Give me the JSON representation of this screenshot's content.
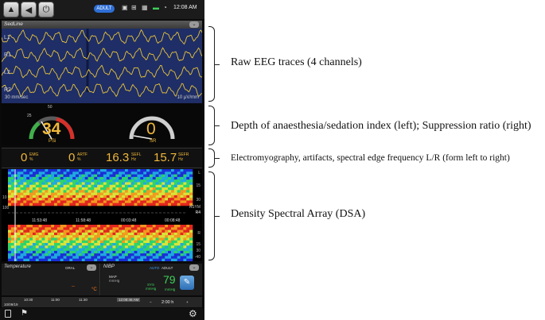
{
  "status_bar": {
    "mode_badge": "ADULT",
    "clock": "12:08 AM",
    "tray_icons": [
      "monitor-icon",
      "network-icon",
      "grid-icon",
      "battery-icon",
      "wifi-icon"
    ]
  },
  "eeg_panel": {
    "title": "SedLine",
    "channels": [
      "L1",
      "R1",
      "L2",
      "R2"
    ],
    "sweep_speed": "30 mm/sec",
    "scale": "10 μV/mm"
  },
  "indices": {
    "psi_value": "34",
    "psi_label": "PSi",
    "psi_ticks": [
      "25",
      "50"
    ],
    "sr_value": "0",
    "sr_label": "SR"
  },
  "params": [
    {
      "value": "0",
      "label": "EMG",
      "unit": "%"
    },
    {
      "value": "0",
      "label": "ARTF",
      "unit": "%"
    },
    {
      "value": "16.3",
      "label": "SEFL",
      "unit": "Hz"
    },
    {
      "value": "15.7",
      "label": "SEFR",
      "unit": "Hz"
    }
  ],
  "dsa": {
    "left_axis": [
      "10",
      "100"
    ],
    "right_axis_top": [
      "L",
      "15",
      "30"
    ],
    "right_axis_bottom": [
      "R",
      "15",
      "30",
      "-40"
    ],
    "asym_label": "ASYM",
    "asym_side": "R4",
    "times": [
      "11:53:48",
      "11:58:48",
      "00:03:48",
      "00:08:48"
    ]
  },
  "temperature": {
    "title": "Temperature",
    "site": "ORAL",
    "value": "--",
    "unit": "°C"
  },
  "nibp": {
    "title": "NIBP",
    "mode": "AUTO",
    "patient": "ADULT",
    "map_label": "MAP",
    "map_unit": "mmHg",
    "sys_dia": "SYS",
    "sys_unit": "mmHg",
    "value": "79",
    "value_unit": "mmHg"
  },
  "timeline": {
    "date": "10/09/19",
    "times": [
      "10:30",
      "11:00",
      "11:30",
      "12:08:46 AM"
    ],
    "span": "2:00 h"
  },
  "annotations": {
    "eeg": "Raw EEG traces (4 channels)",
    "indices": "Depth of anaesthesia/sedation index (left); Suppression ratio (right)",
    "params": "Electromyography, artifacts, spectral edge frequency L/R (form left to right)",
    "dsa": "Density Spectral Array (DSA)"
  },
  "colors": {
    "eeg_background": "#1f2e66",
    "eeg_trace": "#e8c43a",
    "index_text": "#f0b83a",
    "badge": "#2f6fd6",
    "nibp_value": "#3fd15a"
  }
}
